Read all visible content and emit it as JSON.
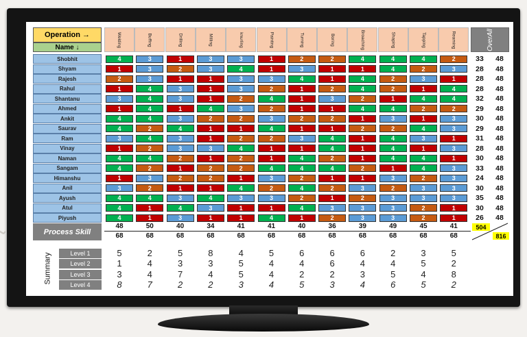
{
  "watermark": "t",
  "header": {
    "operation": "Operation →",
    "name": "Name ↓",
    "overall": "OverAll"
  },
  "operations": [
    "Welding",
    "Buffing",
    "Drilling",
    "Milling",
    "knurling",
    "Painting",
    "Turning",
    "Boring",
    "Broaching",
    "Shaping",
    "Tapping",
    "Reaming"
  ],
  "colors": {
    "1": "#c00000",
    "2": "#c55a11",
    "3": "#5b9bd5",
    "4": "#00b050"
  },
  "rows": [
    {
      "name": "Shobhit",
      "s": [
        4,
        3,
        1,
        3,
        3,
        1,
        2,
        2,
        4,
        4,
        4,
        2
      ],
      "total": "33",
      "max": "48"
    },
    {
      "name": "Shyam",
      "s": [
        1,
        3,
        2,
        3,
        4,
        1,
        3,
        1,
        1,
        4,
        2,
        3
      ],
      "total": "28",
      "max": "48"
    },
    {
      "name": "Rajesh",
      "s": [
        2,
        3,
        1,
        1,
        3,
        3,
        4,
        1,
        4,
        2,
        3,
        1
      ],
      "total": "28",
      "max": "48"
    },
    {
      "name": "Rahul",
      "s": [
        1,
        4,
        3,
        1,
        3,
        2,
        1,
        2,
        4,
        2,
        1,
        4
      ],
      "total": "28",
      "max": "48"
    },
    {
      "name": "Shantanu",
      "s": [
        3,
        4,
        3,
        1,
        2,
        4,
        1,
        3,
        2,
        1,
        4,
        4
      ],
      "total": "32",
      "max": "48"
    },
    {
      "name": "Ahmed",
      "s": [
        1,
        4,
        1,
        4,
        3,
        2,
        1,
        1,
        4,
        4,
        2,
        2
      ],
      "total": "29",
      "max": "48"
    },
    {
      "name": "Ankit",
      "s": [
        4,
        4,
        3,
        2,
        2,
        3,
        2,
        2,
        1,
        3,
        1,
        3
      ],
      "total": "30",
      "max": "48"
    },
    {
      "name": "Saurav",
      "s": [
        4,
        2,
        4,
        1,
        1,
        4,
        1,
        1,
        2,
        2,
        4,
        3
      ],
      "total": "29",
      "max": "48"
    },
    {
      "name": "Ram",
      "s": [
        3,
        4,
        3,
        1,
        2,
        2,
        3,
        4,
        1,
        4,
        3,
        1
      ],
      "total": "31",
      "max": "48"
    },
    {
      "name": "Vinay",
      "s": [
        1,
        2,
        3,
        3,
        4,
        1,
        1,
        4,
        1,
        4,
        1,
        3
      ],
      "total": "28",
      "max": "48"
    },
    {
      "name": "Naman",
      "s": [
        4,
        4,
        2,
        1,
        2,
        1,
        4,
        2,
        1,
        4,
        4,
        1
      ],
      "total": "30",
      "max": "48"
    },
    {
      "name": "Sangam",
      "s": [
        4,
        2,
        1,
        2,
        2,
        4,
        4,
        4,
        2,
        1,
        4,
        3
      ],
      "total": "33",
      "max": "48"
    },
    {
      "name": "Himanshu",
      "s": [
        1,
        3,
        2,
        2,
        1,
        3,
        2,
        1,
        1,
        3,
        2,
        3
      ],
      "total": "24",
      "max": "48"
    },
    {
      "name": "Anil",
      "s": [
        3,
        2,
        1,
        1,
        4,
        2,
        4,
        2,
        3,
        2,
        3,
        3
      ],
      "total": "30",
      "max": "48"
    },
    {
      "name": "Ayush",
      "s": [
        4,
        4,
        3,
        4,
        3,
        3,
        2,
        1,
        2,
        3,
        3,
        3
      ],
      "total": "35",
      "max": "48"
    },
    {
      "name": "Atul",
      "s": [
        4,
        1,
        4,
        3,
        1,
        1,
        4,
        3,
        3,
        3,
        2,
        1
      ],
      "total": "30",
      "max": "48"
    },
    {
      "name": "Piyush",
      "s": [
        4,
        1,
        3,
        1,
        1,
        4,
        1,
        2,
        3,
        3,
        2,
        1
      ],
      "total": "26",
      "max": "48"
    }
  ],
  "process_skill": {
    "label": "Process Skill",
    "values": [
      "48",
      "50",
      "40",
      "34",
      "41",
      "41",
      "40",
      "36",
      "39",
      "49",
      "45",
      "41"
    ],
    "max": [
      "68",
      "68",
      "68",
      "68",
      "68",
      "68",
      "68",
      "68",
      "68",
      "68",
      "68",
      "68"
    ],
    "total": "504",
    "max_total": "816"
  },
  "summary": {
    "label": "Summary",
    "levels": [
      {
        "label": "Level 1",
        "v": [
          "5",
          "2",
          "5",
          "8",
          "4",
          "5",
          "6",
          "6",
          "6",
          "2",
          "3",
          "5"
        ]
      },
      {
        "label": "Level 2",
        "v": [
          "1",
          "4",
          "3",
          "3",
          "5",
          "4",
          "4",
          "6",
          "4",
          "4",
          "5",
          "2"
        ]
      },
      {
        "label": "Level 3",
        "v": [
          "3",
          "4",
          "7",
          "4",
          "5",
          "4",
          "2",
          "2",
          "3",
          "5",
          "4",
          "8"
        ]
      },
      {
        "label": "Level 4",
        "v": [
          "8",
          "7",
          "2",
          "2",
          "3",
          "4",
          "5",
          "3",
          "4",
          "6",
          "5",
          "2"
        ]
      }
    ]
  }
}
